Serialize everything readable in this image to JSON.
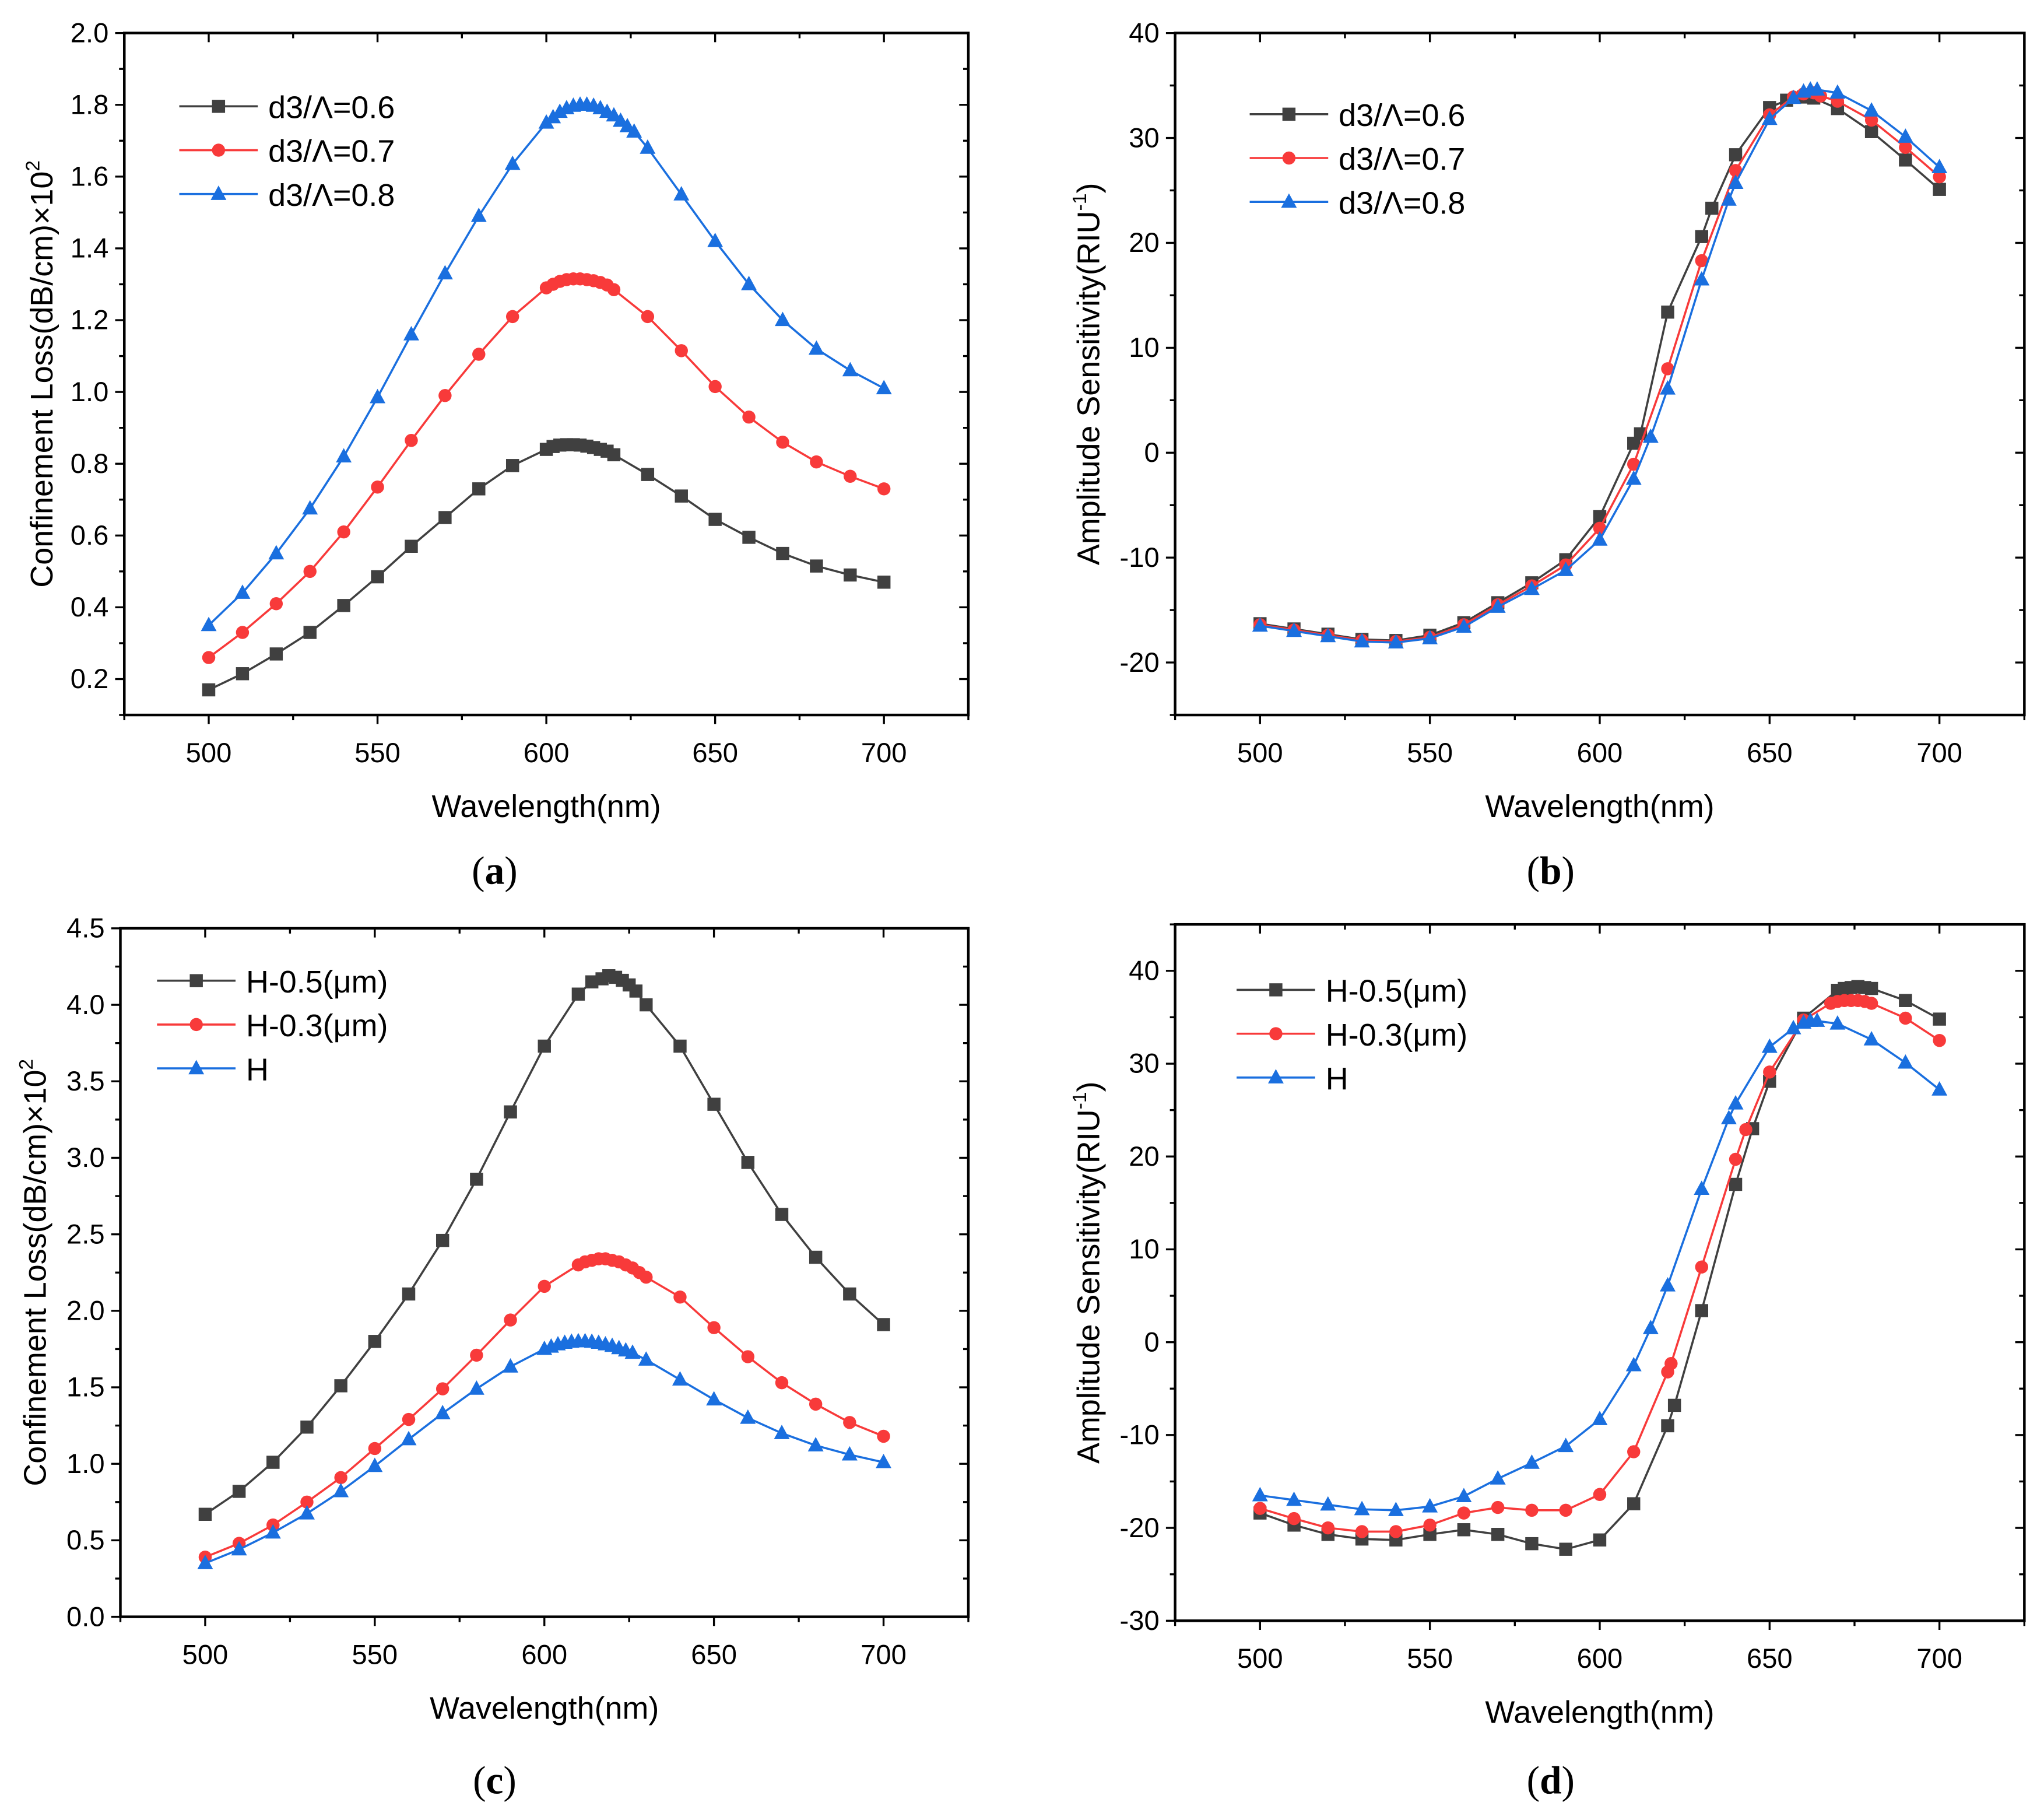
{
  "colors": {
    "gray": "#404040",
    "red": "#f83a3a",
    "blue": "#1a6fdf"
  },
  "chart_data": [
    {
      "type": "line",
      "caption": [
        "(",
        "a",
        ")"
      ],
      "xlabel": "Wavelength(nm)",
      "ylabel": [
        "Confinement Loss(dB/cm)×10",
        "2",
        ""
      ],
      "xlim": [
        475,
        725
      ],
      "ylim": [
        0.1,
        2.0
      ],
      "xticks": [
        500,
        550,
        600,
        650,
        700
      ],
      "xtick_labels": [
        "500",
        "550",
        "600",
        "650",
        "700"
      ],
      "yticks": [
        0.2,
        0.4,
        0.6,
        0.8,
        1.0,
        1.2,
        1.4,
        1.6,
        1.8,
        2.0
      ],
      "ytick_labels": [
        "0.2",
        "0.4",
        "0.6",
        "0.8",
        "1.0",
        "1.2",
        "1.4",
        "1.6",
        "1.8",
        "2.0"
      ],
      "legend": "top-left",
      "series": [
        {
          "name": "d3/Λ=0.6",
          "color": "gray",
          "marker": "square",
          "x": [
            500,
            510,
            520,
            530,
            540,
            550,
            560,
            570,
            580,
            590,
            600,
            602,
            604,
            606,
            608,
            610,
            612,
            614,
            616,
            618,
            620,
            630,
            640,
            650,
            660,
            670,
            680,
            690,
            700
          ],
          "y": [
            0.17,
            0.215,
            0.27,
            0.33,
            0.405,
            0.485,
            0.57,
            0.65,
            0.73,
            0.795,
            0.84,
            0.848,
            0.852,
            0.853,
            0.853,
            0.852,
            0.849,
            0.845,
            0.84,
            0.835,
            0.825,
            0.77,
            0.71,
            0.645,
            0.595,
            0.55,
            0.515,
            0.49,
            0.47
          ]
        },
        {
          "name": "d3/Λ=0.7",
          "color": "red",
          "marker": "circle",
          "x": [
            500,
            510,
            520,
            530,
            540,
            550,
            560,
            570,
            580,
            590,
            600,
            602,
            604,
            606,
            608,
            610,
            612,
            614,
            616,
            618,
            620,
            630,
            640,
            650,
            660,
            670,
            680,
            690,
            700
          ],
          "y": [
            0.26,
            0.33,
            0.41,
            0.5,
            0.61,
            0.735,
            0.865,
            0.99,
            1.105,
            1.21,
            1.29,
            1.3,
            1.308,
            1.313,
            1.315,
            1.315,
            1.313,
            1.31,
            1.305,
            1.298,
            1.285,
            1.21,
            1.115,
            1.015,
            0.93,
            0.86,
            0.805,
            0.765,
            0.73
          ]
        },
        {
          "name": "d3/Λ=0.8",
          "color": "blue",
          "marker": "triangle",
          "x": [
            500,
            510,
            520,
            530,
            540,
            550,
            560,
            570,
            580,
            590,
            600,
            602,
            604,
            606,
            608,
            610,
            612,
            614,
            616,
            618,
            620,
            622,
            624,
            626,
            630,
            640,
            650,
            660,
            670,
            680,
            690,
            700
          ],
          "y": [
            0.35,
            0.44,
            0.55,
            0.675,
            0.82,
            0.985,
            1.16,
            1.33,
            1.49,
            1.635,
            1.75,
            1.765,
            1.78,
            1.79,
            1.797,
            1.8,
            1.8,
            1.797,
            1.79,
            1.78,
            1.77,
            1.755,
            1.74,
            1.725,
            1.68,
            1.55,
            1.42,
            1.3,
            1.2,
            1.12,
            1.06,
            1.01
          ]
        }
      ]
    },
    {
      "type": "line",
      "caption": [
        "(",
        "b",
        ")"
      ],
      "xlabel": "Wavelength(nm)",
      "ylabel": [
        "Amplitude Sensitivity(RIU",
        "-1",
        ")"
      ],
      "xlim": [
        475,
        725
      ],
      "ylim": [
        -25,
        40
      ],
      "xticks": [
        500,
        550,
        600,
        650,
        700
      ],
      "xtick_labels": [
        "500",
        "550",
        "600",
        "650",
        "700"
      ],
      "yticks": [
        -20,
        -10,
        0,
        10,
        20,
        30,
        40
      ],
      "ytick_labels": [
        "-20",
        "-10",
        "0",
        "10",
        "20",
        "30",
        "40"
      ],
      "legend": "top-left",
      "series": [
        {
          "name": "d3/Λ=0.6",
          "color": "gray",
          "marker": "square",
          "x": [
            500,
            510,
            520,
            530,
            540,
            550,
            560,
            570,
            580,
            590,
            600,
            610,
            612,
            620,
            630,
            633,
            640,
            650,
            655,
            660,
            663,
            670,
            680,
            690,
            700
          ],
          "y": [
            -16.3,
            -16.8,
            -17.3,
            -17.8,
            -17.9,
            -17.4,
            -16.2,
            -14.3,
            -12.4,
            -10.2,
            -6.1,
            0.9,
            1.8,
            13.4,
            20.6,
            23.3,
            28.4,
            32.9,
            33.6,
            33.9,
            33.8,
            32.8,
            30.6,
            27.9,
            25.1
          ]
        },
        {
          "name": "d3/Λ=0.7",
          "color": "red",
          "marker": "circle",
          "x": [
            500,
            510,
            520,
            530,
            540,
            550,
            560,
            570,
            580,
            590,
            600,
            610,
            620,
            630,
            640,
            650,
            657,
            660,
            663,
            665,
            670,
            680,
            690,
            700
          ],
          "y": [
            -16.4,
            -16.9,
            -17.4,
            -17.9,
            -18.0,
            -17.6,
            -16.4,
            -14.5,
            -12.7,
            -10.7,
            -7.2,
            -1.1,
            8.0,
            18.3,
            26.9,
            32.2,
            33.9,
            34.2,
            34.3,
            34.0,
            33.5,
            31.7,
            29.1,
            26.3
          ]
        },
        {
          "name": "d3/Λ=0.8",
          "color": "blue",
          "marker": "triangle",
          "x": [
            500,
            510,
            520,
            530,
            540,
            550,
            560,
            570,
            580,
            590,
            600,
            610,
            615,
            620,
            630,
            638,
            640,
            650,
            657,
            660,
            662,
            664,
            670,
            680,
            690,
            700
          ],
          "y": [
            -16.5,
            -17.0,
            -17.5,
            -18.0,
            -18.1,
            -17.7,
            -16.6,
            -14.7,
            -13.0,
            -11.2,
            -8.3,
            -2.5,
            1.5,
            6.1,
            16.5,
            24.1,
            25.7,
            31.8,
            33.8,
            34.4,
            34.6,
            34.6,
            34.3,
            32.6,
            30.1,
            27.2
          ]
        }
      ]
    },
    {
      "type": "line",
      "caption": [
        "(",
        "c",
        ")"
      ],
      "xlabel": "Wavelength(nm)",
      "ylabel": [
        "Confinement Loss(dB/cm)×10",
        "2",
        ""
      ],
      "xlim": [
        475,
        725
      ],
      "ylim": [
        0,
        4.5
      ],
      "xticks": [
        500,
        550,
        600,
        650,
        700
      ],
      "xtick_labels": [
        "500",
        "550",
        "600",
        "650",
        "700"
      ],
      "yticks": [
        0,
        0.5,
        1.0,
        1.5,
        2.0,
        2.5,
        3.0,
        3.5,
        4.0,
        4.5
      ],
      "ytick_labels": [
        "0.0",
        "0.5",
        "1.0",
        "1.5",
        "2.0",
        "2.5",
        "3.0",
        "3.5",
        "4.0",
        "4.5"
      ],
      "legend": "top-left",
      "series": [
        {
          "name": "H-0.5(μm)",
          "color": "gray",
          "marker": "square",
          "x": [
            500,
            510,
            520,
            530,
            540,
            550,
            560,
            570,
            580,
            590,
            600,
            610,
            614,
            617,
            619,
            621,
            623,
            625,
            627,
            630,
            640,
            650,
            660,
            670,
            680,
            690,
            700
          ],
          "y": [
            0.67,
            0.82,
            1.01,
            1.24,
            1.51,
            1.8,
            2.11,
            2.46,
            2.86,
            3.3,
            3.73,
            4.07,
            4.15,
            4.17,
            4.19,
            4.18,
            4.16,
            4.13,
            4.09,
            4.0,
            3.73,
            3.35,
            2.97,
            2.63,
            2.35,
            2.11,
            1.91
          ]
        },
        {
          "name": "H-0.3(μm)",
          "color": "red",
          "marker": "circle",
          "x": [
            500,
            510,
            520,
            530,
            540,
            550,
            560,
            570,
            580,
            590,
            600,
            610,
            612,
            614,
            616,
            618,
            620,
            622,
            624,
            626,
            628,
            630,
            640,
            650,
            660,
            670,
            680,
            690,
            700
          ],
          "y": [
            0.39,
            0.48,
            0.6,
            0.75,
            0.91,
            1.1,
            1.29,
            1.49,
            1.71,
            1.94,
            2.16,
            2.3,
            2.32,
            2.33,
            2.34,
            2.34,
            2.33,
            2.32,
            2.3,
            2.28,
            2.25,
            2.22,
            2.09,
            1.89,
            1.7,
            1.53,
            1.39,
            1.27,
            1.18
          ]
        },
        {
          "name": "H",
          "color": "blue",
          "marker": "triangle",
          "x": [
            500,
            510,
            520,
            530,
            540,
            550,
            560,
            570,
            580,
            590,
            600,
            602,
            604,
            606,
            608,
            610,
            612,
            614,
            616,
            618,
            620,
            622,
            624,
            626,
            630,
            640,
            650,
            660,
            670,
            680,
            690,
            700
          ],
          "y": [
            0.35,
            0.44,
            0.55,
            0.675,
            0.82,
            0.985,
            1.16,
            1.33,
            1.49,
            1.635,
            1.75,
            1.765,
            1.78,
            1.79,
            1.797,
            1.8,
            1.8,
            1.797,
            1.79,
            1.78,
            1.77,
            1.755,
            1.74,
            1.725,
            1.68,
            1.55,
            1.42,
            1.3,
            1.2,
            1.12,
            1.06,
            1.01
          ]
        }
      ]
    },
    {
      "type": "line",
      "caption": [
        "(",
        "d",
        ")"
      ],
      "xlabel": "Wavelength(nm)",
      "ylabel": [
        "Amplitude Sensitivity(RIU",
        "-1",
        ")"
      ],
      "xlim": [
        475,
        725
      ],
      "ylim": [
        -30,
        45
      ],
      "xticks": [
        500,
        550,
        600,
        650,
        700
      ],
      "xtick_labels": [
        "500",
        "550",
        "600",
        "650",
        "700"
      ],
      "yticks": [
        -30,
        -20,
        -10,
        0,
        10,
        20,
        30,
        40
      ],
      "ytick_labels": [
        "-30",
        "-20",
        "-10",
        "0",
        "10",
        "20",
        "30",
        "40"
      ],
      "legend": "top-left",
      "series": [
        {
          "name": "H-0.5(μm)",
          "color": "gray",
          "marker": "square",
          "x": [
            500,
            510,
            520,
            530,
            540,
            550,
            560,
            570,
            580,
            590,
            600,
            610,
            620,
            622,
            630,
            640,
            645,
            650,
            660,
            670,
            672,
            674,
            676,
            678,
            680,
            690,
            700
          ],
          "y": [
            -18.4,
            -19.7,
            -20.7,
            -21.2,
            -21.3,
            -20.7,
            -20.2,
            -20.7,
            -21.7,
            -22.3,
            -21.3,
            -17.4,
            -9.0,
            -6.8,
            3.4,
            17.0,
            23.0,
            28.1,
            34.9,
            37.9,
            38.1,
            38.2,
            38.3,
            38.2,
            38.1,
            36.8,
            34.8
          ]
        },
        {
          "name": "H-0.3(μm)",
          "color": "red",
          "marker": "circle",
          "x": [
            500,
            510,
            520,
            530,
            540,
            550,
            560,
            570,
            580,
            590,
            600,
            610,
            620,
            621,
            630,
            640,
            643,
            650,
            660,
            668,
            670,
            672,
            674,
            676,
            678,
            680,
            690,
            700
          ],
          "y": [
            -17.9,
            -19.0,
            -20.0,
            -20.4,
            -20.4,
            -19.7,
            -18.4,
            -17.8,
            -18.1,
            -18.1,
            -16.4,
            -11.8,
            -3.2,
            -2.3,
            8.1,
            19.7,
            22.9,
            29.1,
            34.7,
            36.5,
            36.7,
            36.8,
            36.8,
            36.8,
            36.7,
            36.5,
            34.9,
            32.5
          ]
        },
        {
          "name": "H",
          "color": "blue",
          "marker": "triangle",
          "x": [
            500,
            510,
            520,
            530,
            540,
            550,
            560,
            570,
            580,
            590,
            600,
            610,
            615,
            620,
            630,
            638,
            640,
            650,
            657,
            660,
            662,
            664,
            670,
            680,
            690,
            700
          ],
          "y": [
            -16.5,
            -17.0,
            -17.5,
            -18.0,
            -18.1,
            -17.7,
            -16.6,
            -14.7,
            -13.0,
            -11.2,
            -8.3,
            -2.5,
            1.5,
            6.1,
            16.5,
            24.1,
            25.7,
            31.8,
            33.8,
            34.4,
            34.6,
            34.6,
            34.3,
            32.6,
            30.1,
            27.2
          ]
        }
      ]
    }
  ]
}
